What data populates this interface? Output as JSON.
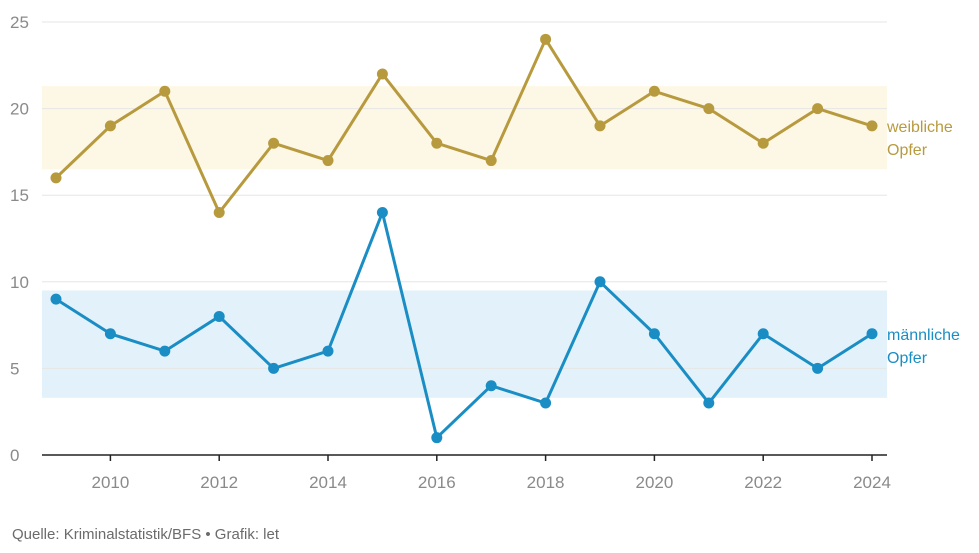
{
  "chart_data": {
    "type": "line",
    "x": [
      2009,
      2010,
      2011,
      2012,
      2013,
      2014,
      2015,
      2016,
      2017,
      2018,
      2019,
      2020,
      2021,
      2022,
      2023,
      2024
    ],
    "xlim": [
      2009,
      2024
    ],
    "ylim": [
      0,
      25
    ],
    "x_ticks": [
      "2010",
      "2012",
      "2014",
      "2016",
      "2018",
      "2020",
      "2022",
      "2024"
    ],
    "y_ticks": [
      "0",
      "5",
      "10",
      "15",
      "20",
      "25"
    ],
    "grid": "horizontal",
    "series": [
      {
        "key": "female",
        "label_lines": [
          "weibliche",
          "Opfer"
        ],
        "color": "#b89a3e",
        "band_color": "#fdf7e6",
        "band_range": [
          16.5,
          21.3
        ],
        "values": [
          16,
          19,
          21,
          14,
          18,
          17,
          22,
          18,
          17,
          24,
          19,
          21,
          20,
          18,
          20,
          19
        ]
      },
      {
        "key": "male",
        "label_lines": [
          "männliche",
          "Opfer"
        ],
        "color": "#1a8ec4",
        "band_color": "#e3f2fa",
        "band_range": [
          3.3,
          9.5
        ],
        "values": [
          9,
          7,
          6,
          8,
          5,
          6,
          14,
          1,
          4,
          3,
          10,
          7,
          3,
          7,
          5,
          7
        ]
      }
    ]
  },
  "source": "Quelle: Kriminalstatistik/BFS • Grafik: let"
}
